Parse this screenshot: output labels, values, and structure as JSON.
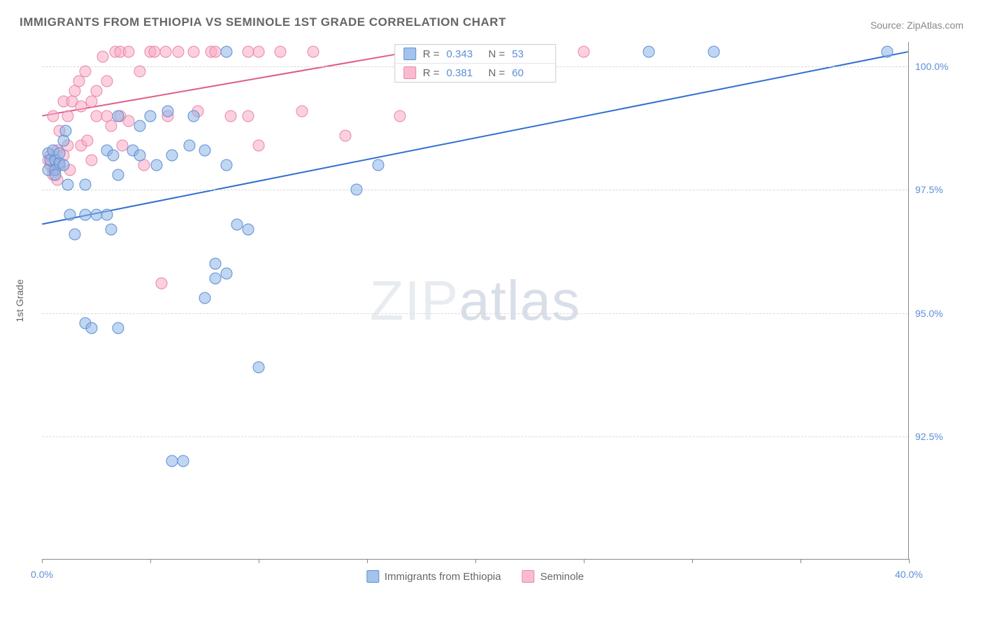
{
  "title": "IMMIGRANTS FROM ETHIOPIA VS SEMINOLE 1ST GRADE CORRELATION CHART",
  "source": "Source: ZipAtlas.com",
  "watermark_a": "ZIP",
  "watermark_b": "atlas",
  "chart": {
    "type": "scatter",
    "x_axis_title": "",
    "y_axis_title": "1st Grade",
    "xlim": [
      0,
      40
    ],
    "ylim": [
      90,
      100.5
    ],
    "x_ticks": [
      0,
      5,
      10,
      15,
      20,
      25,
      30,
      35,
      40
    ],
    "x_tick_labels": {
      "0": "0.0%",
      "40": "40.0%"
    },
    "y_ticks": [
      92.5,
      95.0,
      97.5,
      100.0
    ],
    "y_tick_labels": [
      "92.5%",
      "95.0%",
      "97.5%",
      "100.0%"
    ],
    "background_color": "#ffffff",
    "grid_color": "#d8d8d8",
    "axis_color": "#888888",
    "series": {
      "blue": {
        "label": "Immigrants from Ethiopia",
        "fill_color": "rgba(140,180,230,0.55)",
        "stroke_color": "#5b8fd6",
        "marker_size": 17,
        "R": "0.343",
        "N": "53",
        "trend": {
          "x1": 0,
          "y1": 96.8,
          "x2": 40,
          "y2": 100.3,
          "color": "#2f6fd0",
          "width": 2
        },
        "points": [
          [
            0.3,
            97.9
          ],
          [
            0.3,
            98.25
          ],
          [
            0.4,
            98.1
          ],
          [
            0.5,
            98.3
          ],
          [
            0.6,
            98.1
          ],
          [
            0.6,
            97.9
          ],
          [
            0.6,
            97.8
          ],
          [
            0.8,
            98.05
          ],
          [
            0.8,
            98.25
          ],
          [
            1.0,
            98.5
          ],
          [
            1.0,
            98.0
          ],
          [
            1.1,
            98.7
          ],
          [
            1.2,
            97.6
          ],
          [
            1.3,
            97.0
          ],
          [
            1.5,
            96.6
          ],
          [
            2.0,
            94.8
          ],
          [
            2.3,
            94.7
          ],
          [
            2.0,
            97.0
          ],
          [
            2.0,
            97.6
          ],
          [
            2.5,
            97.0
          ],
          [
            3.0,
            97.0
          ],
          [
            3.0,
            98.3
          ],
          [
            3.2,
            96.7
          ],
          [
            3.3,
            98.2
          ],
          [
            3.5,
            99.0
          ],
          [
            3.5,
            97.8
          ],
          [
            3.5,
            94.7
          ],
          [
            4.2,
            98.3
          ],
          [
            4.5,
            98.2
          ],
          [
            4.5,
            98.8
          ],
          [
            5.0,
            99.0
          ],
          [
            5.3,
            98.0
          ],
          [
            5.8,
            99.1
          ],
          [
            6.0,
            98.2
          ],
          [
            6.0,
            92.0
          ],
          [
            6.5,
            92.0
          ],
          [
            6.8,
            98.4
          ],
          [
            7.0,
            99.0
          ],
          [
            7.5,
            98.3
          ],
          [
            7.5,
            95.3
          ],
          [
            8.0,
            95.7
          ],
          [
            8.0,
            96.0
          ],
          [
            8.5,
            95.8
          ],
          [
            8.5,
            98.0
          ],
          [
            8.5,
            100.3
          ],
          [
            9.0,
            96.8
          ],
          [
            9.5,
            96.7
          ],
          [
            10.0,
            93.9
          ],
          [
            14.5,
            97.5
          ],
          [
            15.5,
            98.0
          ],
          [
            28.0,
            100.3
          ],
          [
            31.0,
            100.3
          ],
          [
            39.0,
            100.3
          ]
        ]
      },
      "pink": {
        "label": "Seminole",
        "fill_color": "rgba(250,170,195,0.55)",
        "stroke_color": "#e886a8",
        "marker_size": 17,
        "R": "0.381",
        "N": "60",
        "trend": {
          "x1": 0,
          "y1": 99.0,
          "x2": 17,
          "y2": 100.3,
          "color": "#e05b88",
          "width": 2
        },
        "points": [
          [
            0.3,
            98.1
          ],
          [
            0.4,
            98.2
          ],
          [
            0.4,
            98.0
          ],
          [
            0.5,
            99.0
          ],
          [
            0.5,
            97.9
          ],
          [
            0.5,
            97.8
          ],
          [
            0.6,
            98.1
          ],
          [
            0.7,
            98.3
          ],
          [
            0.7,
            97.7
          ],
          [
            0.8,
            98.7
          ],
          [
            0.8,
            98.0
          ],
          [
            1.0,
            98.2
          ],
          [
            1.0,
            99.3
          ],
          [
            1.2,
            98.4
          ],
          [
            1.2,
            99.0
          ],
          [
            1.3,
            97.9
          ],
          [
            1.4,
            99.3
          ],
          [
            1.5,
            99.5
          ],
          [
            1.7,
            99.7
          ],
          [
            1.8,
            98.4
          ],
          [
            1.8,
            99.2
          ],
          [
            2.0,
            99.9
          ],
          [
            2.1,
            98.5
          ],
          [
            2.3,
            98.1
          ],
          [
            2.3,
            99.3
          ],
          [
            2.5,
            99.5
          ],
          [
            2.5,
            99.0
          ],
          [
            2.8,
            100.2
          ],
          [
            3.0,
            99.7
          ],
          [
            3.0,
            99.0
          ],
          [
            3.2,
            98.8
          ],
          [
            3.4,
            100.3
          ],
          [
            3.6,
            100.3
          ],
          [
            3.6,
            99.0
          ],
          [
            3.7,
            98.4
          ],
          [
            4.0,
            98.9
          ],
          [
            4.0,
            100.3
          ],
          [
            4.5,
            99.9
          ],
          [
            4.7,
            98.0
          ],
          [
            5.0,
            100.3
          ],
          [
            5.2,
            100.3
          ],
          [
            5.5,
            95.6
          ],
          [
            5.7,
            100.3
          ],
          [
            5.8,
            99.0
          ],
          [
            6.3,
            100.3
          ],
          [
            7.0,
            100.3
          ],
          [
            7.2,
            99.1
          ],
          [
            7.8,
            100.3
          ],
          [
            8.0,
            100.3
          ],
          [
            8.7,
            99.0
          ],
          [
            9.5,
            100.3
          ],
          [
            9.5,
            99.0
          ],
          [
            10.0,
            98.4
          ],
          [
            10.0,
            100.3
          ],
          [
            11.0,
            100.3
          ],
          [
            12.0,
            99.1
          ],
          [
            12.5,
            100.3
          ],
          [
            14.0,
            98.6
          ],
          [
            16.5,
            99.0
          ],
          [
            25.0,
            100.3
          ]
        ]
      }
    },
    "legend_stats": {
      "row1_r_label": "R =",
      "row1_n_label": "N =",
      "row2_r_label": "R =",
      "row2_n_label": "N ="
    }
  }
}
